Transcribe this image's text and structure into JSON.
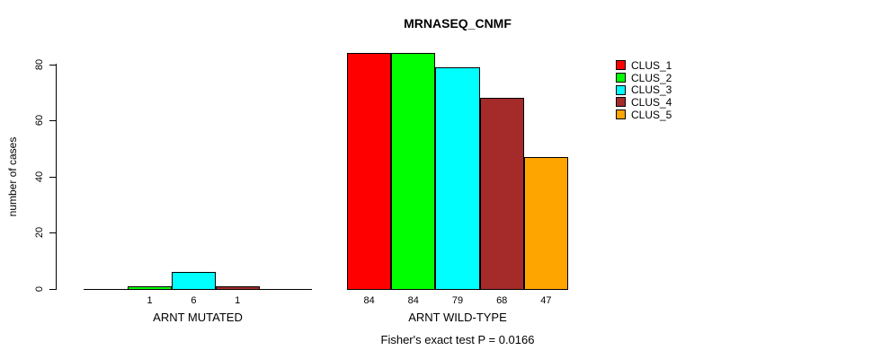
{
  "figure": {
    "background": "#ffffff"
  },
  "chart_data": {
    "type": "bar",
    "title": "MRNASEQ_CNMF",
    "xlabel": "",
    "ylabel": "number of cases",
    "ylim": [
      0,
      84
    ],
    "yticks": [
      0,
      20,
      40,
      60,
      80
    ],
    "grid": false,
    "legend_position": "right",
    "categories": [
      "ARNT MUTATED",
      "ARNT WILD-TYPE"
    ],
    "series": [
      {
        "name": "CLUS_1",
        "color": "#ff0000",
        "values": [
          0,
          84
        ]
      },
      {
        "name": "CLUS_2",
        "color": "#00ff00",
        "values": [
          1,
          84
        ]
      },
      {
        "name": "CLUS_3",
        "color": "#00ffff",
        "values": [
          6,
          79
        ]
      },
      {
        "name": "CLUS_4",
        "color": "#a52a2a",
        "values": [
          1,
          68
        ]
      },
      {
        "name": "CLUS_5",
        "color": "#ffa500",
        "values": [
          0,
          47
        ]
      }
    ],
    "bar_value_labels": {
      "ARNT MUTATED": [
        "1",
        "6",
        "1"
      ],
      "ARNT WILD-TYPE": [
        "84",
        "84",
        "79",
        "68",
        "47"
      ]
    },
    "annotation": "Fisher's exact test P = 0.0166",
    "axis_color": "#000000",
    "bar_border_color": "#000000"
  }
}
